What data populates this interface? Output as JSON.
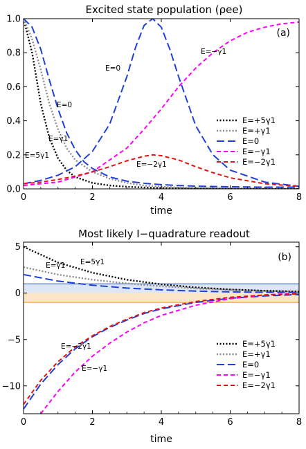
{
  "chart_data": [
    {
      "type": "line",
      "title": "Excited state population (ρee)",
      "panel_label": "(a)",
      "xlabel": "time",
      "ylabel": "",
      "xlim": [
        0,
        8
      ],
      "ylim": [
        0,
        1
      ],
      "x_ticks": [
        "0",
        "2",
        "4",
        "6",
        "8"
      ],
      "y_ticks": [
        "0.0",
        "0.2",
        "0.4",
        "0.6",
        "0.8",
        "1.0"
      ],
      "legend_position": "right",
      "series": [
        {
          "name": "E=+5γ1",
          "color": "#000000",
          "dash": "dotted",
          "x": [
            0,
            0.25,
            0.5,
            0.75,
            1,
            1.25,
            1.5,
            2,
            2.5,
            3,
            4,
            5,
            6,
            8
          ],
          "y": [
            1.0,
            0.8,
            0.5,
            0.3,
            0.18,
            0.11,
            0.07,
            0.035,
            0.02,
            0.012,
            0.005,
            0.002,
            0.001,
            0.0
          ]
        },
        {
          "name": "E=+γ1",
          "color": "#8c8c8c",
          "dash": "dotted",
          "x": [
            0,
            0.25,
            0.5,
            0.75,
            1,
            1.25,
            1.5,
            2,
            2.5,
            3,
            3.5,
            4,
            5,
            6,
            8
          ],
          "y": [
            1.0,
            0.88,
            0.7,
            0.5,
            0.35,
            0.24,
            0.17,
            0.1,
            0.06,
            0.035,
            0.02,
            0.012,
            0.005,
            0.002,
            0.0
          ]
        },
        {
          "name": "E=0",
          "color": "#1f3fd6",
          "dash": "long-dash",
          "x": [
            0,
            0.25,
            0.5,
            0.75,
            1,
            1.25,
            1.5,
            1.75,
            2,
            2.5,
            3,
            3.5,
            4,
            4.5,
            5,
            6,
            7,
            8
          ],
          "y": [
            1.0,
            0.95,
            0.82,
            0.64,
            0.47,
            0.33,
            0.23,
            0.16,
            0.12,
            0.07,
            0.045,
            0.033,
            0.025,
            0.02,
            0.016,
            0.012,
            0.01,
            0.01
          ],
          "secondary": {
            "x": [
              0,
              0.5,
              1,
              1.5,
              2,
              2.5,
              3,
              3.25,
              3.5,
              3.75,
              4,
              4.25,
              4.5,
              5,
              5.5,
              6,
              7,
              8
            ],
            "y": [
              0.03,
              0.05,
              0.08,
              0.13,
              0.22,
              0.38,
              0.66,
              0.83,
              0.96,
              1.0,
              0.95,
              0.82,
              0.66,
              0.37,
              0.2,
              0.11,
              0.04,
              0.015
            ]
          }
        },
        {
          "name": "E=−γ1",
          "color": "#ff00ff",
          "dash": "dashed",
          "x": [
            0,
            1,
            2,
            3,
            3.5,
            4,
            4.5,
            5,
            5.5,
            6,
            6.5,
            7,
            7.5,
            8
          ],
          "y": [
            0.02,
            0.04,
            0.1,
            0.24,
            0.35,
            0.47,
            0.6,
            0.71,
            0.8,
            0.87,
            0.92,
            0.95,
            0.97,
            0.98
          ]
        },
        {
          "name": "E=−2γ1",
          "color": "#e3130f",
          "dash": "dashed",
          "x": [
            0,
            0.5,
            1,
            1.5,
            2,
            2.5,
            3,
            3.5,
            3.75,
            4,
            4.5,
            5,
            5.5,
            6,
            7,
            8
          ],
          "y": [
            0.03,
            0.04,
            0.055,
            0.075,
            0.1,
            0.13,
            0.165,
            0.192,
            0.2,
            0.195,
            0.17,
            0.13,
            0.095,
            0.065,
            0.03,
            0.015
          ]
        }
      ],
      "annotations": [
        "E=0",
        "E=0",
        "E=−γ1",
        "E=γ1",
        "E=5γ1",
        "E=−2γ1"
      ]
    },
    {
      "type": "line",
      "title": "Most likely I−quadrature readout",
      "panel_label": "(b)",
      "xlabel": "time",
      "ylabel": "",
      "xlim": [
        0,
        8
      ],
      "ylim": [
        -13,
        5.5
      ],
      "x_ticks": [
        "0",
        "2",
        "4",
        "6",
        "8"
      ],
      "y_ticks": [
        "5",
        "0",
        "−5",
        "−10"
      ],
      "legend_position": "bottom-right",
      "bands": [
        {
          "from": 0,
          "to": 1,
          "fill": "#dde6f3",
          "edge": "#5b7fc2"
        },
        {
          "from": -1,
          "to": 0,
          "fill": "#fbe6c8",
          "edge": "#f0a030"
        }
      ],
      "series": [
        {
          "name": "E=+5γ1",
          "color": "#000000",
          "dash": "dotted",
          "x": [
            0,
            1,
            2,
            3,
            4,
            5,
            6,
            7,
            8
          ],
          "y": [
            5.0,
            3.3,
            2.2,
            1.45,
            0.95,
            0.62,
            0.4,
            0.26,
            0.17
          ]
        },
        {
          "name": "E=+γ1",
          "color": "#8c8c8c",
          "dash": "dotted",
          "x": [
            0,
            1,
            2,
            3,
            4,
            5,
            6,
            7,
            8
          ],
          "y": [
            2.8,
            2.0,
            1.45,
            1.05,
            0.75,
            0.52,
            0.36,
            0.24,
            0.16
          ]
        },
        {
          "name": "E=0",
          "color": "#1f3fd6",
          "dash": "long-dash",
          "x": [
            0,
            1,
            2,
            3,
            4,
            5,
            6,
            7,
            8
          ],
          "y": [
            2.0,
            1.3,
            0.85,
            0.55,
            0.35,
            0.22,
            0.14,
            0.09,
            0.06
          ],
          "secondary": {
            "x": [
              0,
              0.5,
              1,
              1.5,
              2,
              2.5,
              3,
              3.5,
              4,
              5,
              6,
              7,
              8
            ],
            "y": [
              -12.5,
              -9.8,
              -7.7,
              -6.0,
              -4.7,
              -3.7,
              -2.9,
              -2.2,
              -1.7,
              -1.0,
              -0.55,
              -0.3,
              -0.15
            ]
          }
        },
        {
          "name": "E=−γ1",
          "color": "#ff00ff",
          "dash": "dashed",
          "x": [
            0.5,
            1,
            1.5,
            2,
            2.5,
            3,
            3.5,
            4,
            5,
            6,
            7,
            8
          ],
          "y": [
            -13.0,
            -10.6,
            -8.5,
            -6.8,
            -5.4,
            -4.2,
            -3.2,
            -2.4,
            -1.3,
            -0.6,
            -0.2,
            0.0
          ]
        },
        {
          "name": "E=−2γ1",
          "color": "#e3130f",
          "dash": "dashed",
          "x": [
            0,
            0.5,
            1,
            1.5,
            2,
            2.5,
            3,
            3.5,
            4,
            5,
            6,
            7,
            8
          ],
          "y": [
            -12.0,
            -9.4,
            -7.4,
            -5.8,
            -4.6,
            -3.6,
            -2.8,
            -2.1,
            -1.6,
            -0.9,
            -0.45,
            -0.2,
            -0.08
          ]
        }
      ],
      "annotations": [
        "E=5γ1",
        "E=γ1",
        "E=−2γ1",
        "E=−γ1"
      ]
    }
  ]
}
